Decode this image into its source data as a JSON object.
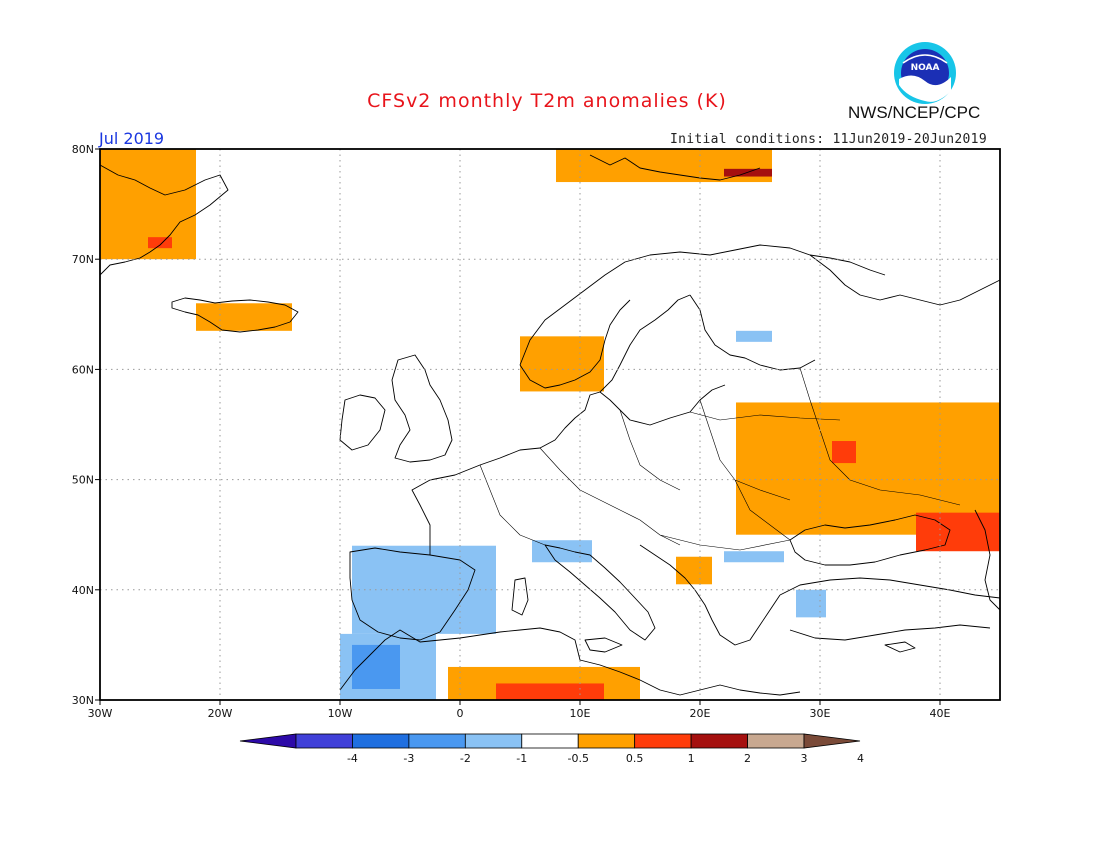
{
  "title": "CFSv2 monthly T2m anomalies (K)",
  "agency": "NWS/NCEP/CPC",
  "logo_text": "NOAA",
  "valid_month": "Jul 2019",
  "initial_conditions": "Initial conditions: 11Jun2019-20Jun2019",
  "map": {
    "lon_range": [
      -30,
      45
    ],
    "lat_range": [
      30,
      80
    ],
    "lat_ticks": [
      {
        "value": 80,
        "label": "80N"
      },
      {
        "value": 70,
        "label": "70N"
      },
      {
        "value": 60,
        "label": "60N"
      },
      {
        "value": 50,
        "label": "50N"
      },
      {
        "value": 40,
        "label": "40N"
      },
      {
        "value": 30,
        "label": "30N"
      }
    ],
    "lon_ticks": [
      {
        "value": -30,
        "label": "30W"
      },
      {
        "value": -20,
        "label": "20W"
      },
      {
        "value": -10,
        "label": "10W"
      },
      {
        "value": 0,
        "label": "0"
      },
      {
        "value": 10,
        "label": "10E"
      },
      {
        "value": 20,
        "label": "20E"
      },
      {
        "value": 30,
        "label": "30E"
      },
      {
        "value": 40,
        "label": "40E"
      }
    ],
    "grid": true
  },
  "colorbar": {
    "bins": [
      {
        "range": "< -4",
        "color": "#2d0aa8"
      },
      {
        "range": "-4 to -3",
        "color": "#4040d8"
      },
      {
        "range": "-3 to -2",
        "color": "#1f6fe0"
      },
      {
        "range": "-2 to -1",
        "color": "#4a98f0"
      },
      {
        "range": "-1 to -0.5",
        "color": "#8ac2f4"
      },
      {
        "range": "-0.5 to 0.5",
        "color": "#ffffff"
      },
      {
        "range": "0.5 to 1",
        "color": "#ffa000"
      },
      {
        "range": "1 to 2",
        "color": "#ff3c0a"
      },
      {
        "range": "2 to 3",
        "color": "#a5100f"
      },
      {
        "range": "3 to 4",
        "color": "#c8a890"
      },
      {
        "range": "> 4",
        "color": "#7a4a38"
      }
    ],
    "tick_labels": [
      "-4",
      "-3",
      "-2",
      "-1",
      "-0.5",
      "0.5",
      "1",
      "2",
      "3",
      "4"
    ]
  },
  "anomaly_regions": [
    {
      "label": "Greenland east coast",
      "level": "0.5 to 1",
      "lon": [
        -30,
        -22
      ],
      "lat": [
        70,
        80
      ]
    },
    {
      "label": "Greenland local",
      "level": "1 to 2",
      "lon": [
        -26,
        -24
      ],
      "lat": [
        71,
        72
      ]
    },
    {
      "label": "Iceland",
      "level": "0.5 to 1",
      "lon": [
        -22,
        -14
      ],
      "lat": [
        63.5,
        66
      ]
    },
    {
      "label": "Svalbard",
      "level": "0.5 to 1",
      "lon": [
        8,
        26
      ],
      "lat": [
        77,
        80
      ]
    },
    {
      "label": "Svalbard local",
      "level": "2 to 3",
      "lon": [
        22,
        26
      ],
      "lat": [
        77.5,
        78.2
      ]
    },
    {
      "label": "Norway coast",
      "level": "0.5 to 1",
      "lon": [
        5,
        12
      ],
      "lat": [
        58,
        63
      ]
    },
    {
      "label": "Western Russia / Ukraine",
      "level": "0.5 to 1",
      "lon": [
        23,
        45
      ],
      "lat": [
        45,
        57
      ]
    },
    {
      "label": "Black Sea / Caucasus",
      "level": "1 to 2",
      "lon": [
        38,
        45
      ],
      "lat": [
        43.5,
        47
      ]
    },
    {
      "label": "Western Russia local",
      "level": "1 to 2",
      "lon": [
        31,
        33
      ],
      "lat": [
        51.5,
        53.5
      ]
    },
    {
      "label": "Balkans",
      "level": "0.5 to 1",
      "lon": [
        18,
        21
      ],
      "lat": [
        40.5,
        43
      ]
    },
    {
      "label": "North Africa",
      "level": "0.5 to 1",
      "lon": [
        -1,
        15
      ],
      "lat": [
        30,
        33
      ]
    },
    {
      "label": "North Africa local",
      "level": "1 to 2",
      "lon": [
        3,
        12
      ],
      "lat": [
        30,
        31.5
      ]
    },
    {
      "label": "Iberia",
      "level": "-1 to -0.5",
      "lon": [
        -9,
        3
      ],
      "lat": [
        36,
        44
      ]
    },
    {
      "label": "Morocco",
      "level": "-1 to -0.5",
      "lon": [
        -10,
        -2
      ],
      "lat": [
        30,
        36
      ]
    },
    {
      "label": "Morocco local",
      "level": "-2 to -1",
      "lon": [
        -9,
        -5
      ],
      "lat": [
        31,
        35
      ]
    },
    {
      "label": "Northern Italy",
      "level": "-1 to -0.5",
      "lon": [
        6,
        11
      ],
      "lat": [
        42.5,
        44.5
      ]
    },
    {
      "label": "Romania / Bulgaria",
      "level": "-1 to -0.5",
      "lon": [
        22,
        27
      ],
      "lat": [
        42.5,
        43.5
      ]
    },
    {
      "label": "Turkey west",
      "level": "-1 to -0.5",
      "lon": [
        28,
        30.5
      ],
      "lat": [
        37.5,
        40
      ]
    },
    {
      "label": "Finland",
      "level": "-1 to -0.5",
      "lon": [
        23,
        26
      ],
      "lat": [
        62.5,
        63.5
      ]
    }
  ]
}
